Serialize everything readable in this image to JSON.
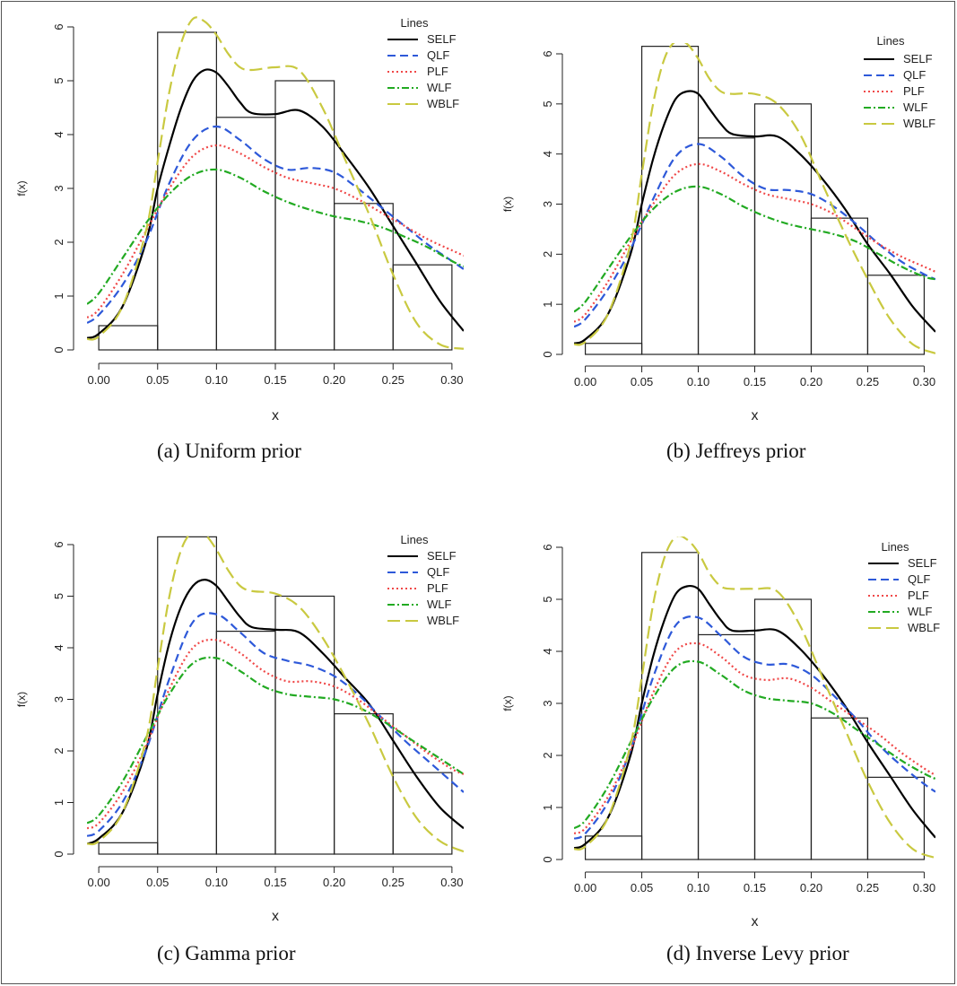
{
  "colors": {
    "SELF": "#000000",
    "QLF": "#2e59d9",
    "PLF": "#f04848",
    "WLF": "#22aa22",
    "WBLF": "#c9c940",
    "frame": "#555555"
  },
  "legend_title": "Lines",
  "series_names": [
    "SELF",
    "QLF",
    "PLF",
    "WLF",
    "WBLF"
  ],
  "chart_data": [
    {
      "type": "line",
      "caption": "(a)  Uniform prior",
      "xlabel": "x",
      "ylabel": "f(x)",
      "xlim": [
        -0.01,
        0.31
      ],
      "ylim": [
        0,
        6
      ],
      "xticks": [
        "0.00",
        "0.05",
        "0.10",
        "0.15",
        "0.20",
        "0.25",
        "0.30"
      ],
      "yticks": [
        "0",
        "1",
        "2",
        "3",
        "4",
        "5",
        "6"
      ],
      "legend_title": "Lines",
      "legend_position": "top-right",
      "histogram": {
        "breaks": [
          0,
          0.05,
          0.1,
          0.15,
          0.2,
          0.25,
          0.3
        ],
        "heights": [
          0.45,
          5.9,
          4.32,
          5.0,
          2.72,
          1.58
        ]
      },
      "series": [
        {
          "name": "SELF",
          "x": [
            -0.01,
            0.0,
            0.02,
            0.04,
            0.05,
            0.06,
            0.07,
            0.08,
            0.09,
            0.1,
            0.11,
            0.12,
            0.13,
            0.15,
            0.17,
            0.19,
            0.21,
            0.23,
            0.25,
            0.27,
            0.29,
            0.31
          ],
          "y": [
            0.22,
            0.3,
            0.8,
            2.0,
            3.0,
            3.8,
            4.5,
            5.0,
            5.2,
            5.15,
            4.9,
            4.6,
            4.4,
            4.38,
            4.45,
            4.15,
            3.6,
            3.0,
            2.3,
            1.6,
            0.9,
            0.35
          ]
        },
        {
          "name": "QLF",
          "x": [
            -0.01,
            0.0,
            0.02,
            0.04,
            0.06,
            0.08,
            0.1,
            0.12,
            0.14,
            0.16,
            0.18,
            0.2,
            0.22,
            0.24,
            0.26,
            0.28,
            0.3,
            0.31
          ],
          "y": [
            0.5,
            0.65,
            1.2,
            2.0,
            3.1,
            3.9,
            4.15,
            3.9,
            3.55,
            3.35,
            3.38,
            3.3,
            3.0,
            2.65,
            2.3,
            1.95,
            1.65,
            1.5
          ]
        },
        {
          "name": "PLF",
          "x": [
            -0.01,
            0.0,
            0.02,
            0.04,
            0.06,
            0.08,
            0.1,
            0.12,
            0.14,
            0.16,
            0.18,
            0.2,
            0.22,
            0.24,
            0.26,
            0.28,
            0.3,
            0.31
          ],
          "y": [
            0.6,
            0.75,
            1.4,
            2.2,
            3.0,
            3.6,
            3.8,
            3.65,
            3.4,
            3.2,
            3.1,
            3.0,
            2.8,
            2.55,
            2.3,
            2.05,
            1.85,
            1.75
          ]
        },
        {
          "name": "WLF",
          "x": [
            -0.01,
            0.0,
            0.02,
            0.04,
            0.06,
            0.08,
            0.1,
            0.12,
            0.14,
            0.16,
            0.18,
            0.2,
            0.22,
            0.24,
            0.26,
            0.28,
            0.3,
            0.31
          ],
          "y": [
            0.85,
            1.05,
            1.7,
            2.35,
            2.9,
            3.25,
            3.35,
            3.2,
            2.95,
            2.75,
            2.6,
            2.48,
            2.4,
            2.28,
            2.1,
            1.9,
            1.65,
            1.55
          ]
        },
        {
          "name": "WBLF",
          "x": [
            -0.01,
            0.0,
            0.02,
            0.04,
            0.05,
            0.06,
            0.07,
            0.08,
            0.09,
            0.1,
            0.11,
            0.12,
            0.13,
            0.15,
            0.17,
            0.19,
            0.21,
            0.23,
            0.25,
            0.27,
            0.29,
            0.31
          ],
          "y": [
            0.2,
            0.25,
            0.8,
            2.2,
            3.5,
            4.8,
            5.7,
            6.15,
            6.1,
            5.85,
            5.5,
            5.25,
            5.2,
            5.25,
            5.2,
            4.5,
            3.5,
            2.5,
            1.4,
            0.5,
            0.1,
            0.02
          ]
        }
      ]
    },
    {
      "type": "line",
      "caption": "(b) Jeffreys prior",
      "xlabel": "x",
      "ylabel": "f(x)",
      "xlim": [
        -0.01,
        0.31
      ],
      "ylim": [
        0,
        6
      ],
      "xticks": [
        "0.00",
        "0.05",
        "0.10",
        "0.15",
        "0.20",
        "0.25",
        "0.30"
      ],
      "yticks": [
        "0",
        "1",
        "2",
        "3",
        "4",
        "5",
        "6"
      ],
      "legend_title": "Lines",
      "legend_position": "top-right",
      "histogram": {
        "breaks": [
          0,
          0.05,
          0.1,
          0.15,
          0.2,
          0.25,
          0.3
        ],
        "heights": [
          0.22,
          6.15,
          4.32,
          5.0,
          2.72,
          1.58
        ]
      },
      "series": [
        {
          "name": "SELF",
          "x": [
            -0.01,
            0.0,
            0.02,
            0.04,
            0.05,
            0.06,
            0.07,
            0.08,
            0.09,
            0.1,
            0.11,
            0.12,
            0.13,
            0.15,
            0.17,
            0.19,
            0.21,
            0.23,
            0.25,
            0.27,
            0.29,
            0.31
          ],
          "y": [
            0.22,
            0.3,
            0.8,
            2.0,
            3.0,
            3.9,
            4.6,
            5.1,
            5.25,
            5.2,
            4.9,
            4.6,
            4.4,
            4.35,
            4.35,
            4.0,
            3.5,
            2.9,
            2.2,
            1.6,
            0.95,
            0.45
          ]
        },
        {
          "name": "QLF",
          "x": [
            -0.01,
            0.0,
            0.02,
            0.04,
            0.06,
            0.08,
            0.1,
            0.12,
            0.14,
            0.16,
            0.18,
            0.2,
            0.22,
            0.24,
            0.26,
            0.28,
            0.3,
            0.31
          ],
          "y": [
            0.55,
            0.7,
            1.3,
            2.1,
            3.1,
            3.95,
            4.2,
            3.95,
            3.55,
            3.3,
            3.28,
            3.2,
            2.95,
            2.6,
            2.2,
            1.85,
            1.6,
            1.5
          ]
        },
        {
          "name": "PLF",
          "x": [
            -0.01,
            0.0,
            0.02,
            0.04,
            0.06,
            0.08,
            0.1,
            0.12,
            0.14,
            0.16,
            0.18,
            0.2,
            0.22,
            0.24,
            0.26,
            0.28,
            0.3,
            0.31
          ],
          "y": [
            0.65,
            0.8,
            1.45,
            2.25,
            3.0,
            3.6,
            3.8,
            3.65,
            3.4,
            3.2,
            3.1,
            3.0,
            2.8,
            2.5,
            2.2,
            1.95,
            1.75,
            1.65
          ]
        },
        {
          "name": "WLF",
          "x": [
            -0.01,
            0.0,
            0.02,
            0.04,
            0.06,
            0.08,
            0.1,
            0.12,
            0.14,
            0.16,
            0.18,
            0.2,
            0.22,
            0.24,
            0.26,
            0.28,
            0.3,
            0.31
          ],
          "y": [
            0.85,
            1.05,
            1.7,
            2.35,
            2.9,
            3.25,
            3.35,
            3.2,
            2.95,
            2.75,
            2.6,
            2.5,
            2.4,
            2.25,
            2.0,
            1.75,
            1.55,
            1.5
          ]
        },
        {
          "name": "WBLF",
          "x": [
            -0.01,
            0.0,
            0.02,
            0.04,
            0.05,
            0.06,
            0.07,
            0.08,
            0.09,
            0.1,
            0.11,
            0.12,
            0.13,
            0.15,
            0.17,
            0.19,
            0.21,
            0.23,
            0.25,
            0.27,
            0.29,
            0.31
          ],
          "y": [
            0.2,
            0.25,
            0.8,
            2.2,
            3.6,
            5.0,
            5.9,
            6.25,
            6.2,
            5.9,
            5.5,
            5.25,
            5.2,
            5.2,
            5.0,
            4.4,
            3.4,
            2.4,
            1.5,
            0.7,
            0.2,
            0.02
          ]
        }
      ]
    },
    {
      "type": "line",
      "caption": "(c)  Gamma prior",
      "xlabel": "x",
      "ylabel": "f(x)",
      "xlim": [
        -0.01,
        0.31
      ],
      "ylim": [
        0,
        6
      ],
      "xticks": [
        "0.00",
        "0.05",
        "0.10",
        "0.15",
        "0.20",
        "0.25",
        "0.30"
      ],
      "yticks": [
        "0",
        "1",
        "2",
        "3",
        "4",
        "5",
        "6"
      ],
      "legend_title": "Lines",
      "legend_position": "top-right",
      "histogram": {
        "breaks": [
          0,
          0.05,
          0.1,
          0.15,
          0.2,
          0.25,
          0.3
        ],
        "heights": [
          0.22,
          6.15,
          4.32,
          5.0,
          2.72,
          1.58
        ]
      },
      "series": [
        {
          "name": "SELF",
          "x": [
            -0.01,
            0.0,
            0.02,
            0.04,
            0.05,
            0.06,
            0.07,
            0.08,
            0.09,
            0.1,
            0.11,
            0.12,
            0.13,
            0.15,
            0.17,
            0.19,
            0.21,
            0.23,
            0.25,
            0.27,
            0.29,
            0.31
          ],
          "y": [
            0.2,
            0.3,
            0.8,
            2.0,
            3.1,
            4.1,
            4.8,
            5.2,
            5.32,
            5.2,
            4.9,
            4.6,
            4.4,
            4.35,
            4.3,
            3.9,
            3.4,
            2.9,
            2.2,
            1.5,
            0.9,
            0.5
          ]
        },
        {
          "name": "QLF",
          "x": [
            -0.01,
            0.0,
            0.02,
            0.04,
            0.06,
            0.08,
            0.1,
            0.12,
            0.14,
            0.16,
            0.18,
            0.2,
            0.22,
            0.24,
            0.26,
            0.28,
            0.3,
            0.31
          ],
          "y": [
            0.35,
            0.45,
            1.0,
            2.0,
            3.4,
            4.5,
            4.65,
            4.3,
            3.9,
            3.75,
            3.65,
            3.45,
            3.1,
            2.65,
            2.2,
            1.8,
            1.4,
            1.2
          ]
        },
        {
          "name": "PLF",
          "x": [
            -0.01,
            0.0,
            0.02,
            0.04,
            0.06,
            0.08,
            0.1,
            0.12,
            0.14,
            0.16,
            0.18,
            0.2,
            0.22,
            0.24,
            0.26,
            0.28,
            0.3,
            0.31
          ],
          "y": [
            0.5,
            0.6,
            1.2,
            2.1,
            3.2,
            4.0,
            4.15,
            3.9,
            3.55,
            3.35,
            3.35,
            3.25,
            3.0,
            2.65,
            2.3,
            1.95,
            1.65,
            1.55
          ]
        },
        {
          "name": "WLF",
          "x": [
            -0.01,
            0.0,
            0.02,
            0.04,
            0.06,
            0.08,
            0.1,
            0.12,
            0.14,
            0.16,
            0.18,
            0.2,
            0.22,
            0.24,
            0.26,
            0.28,
            0.3,
            0.31
          ],
          "y": [
            0.6,
            0.75,
            1.4,
            2.25,
            3.1,
            3.7,
            3.8,
            3.55,
            3.25,
            3.1,
            3.05,
            3.0,
            2.85,
            2.6,
            2.3,
            2.0,
            1.7,
            1.55
          ]
        },
        {
          "name": "WBLF",
          "x": [
            -0.01,
            0.0,
            0.02,
            0.04,
            0.05,
            0.06,
            0.07,
            0.08,
            0.09,
            0.1,
            0.11,
            0.12,
            0.13,
            0.15,
            0.17,
            0.19,
            0.21,
            0.23,
            0.25,
            0.27,
            0.29,
            0.31
          ],
          "y": [
            0.2,
            0.25,
            0.8,
            2.2,
            3.6,
            5.0,
            5.9,
            6.25,
            6.2,
            5.9,
            5.5,
            5.2,
            5.1,
            5.05,
            4.8,
            4.2,
            3.4,
            2.5,
            1.5,
            0.7,
            0.25,
            0.05
          ]
        }
      ]
    },
    {
      "type": "line",
      "caption": "(d) Inverse Levy prior",
      "xlabel": "x",
      "ylabel": "f(x)",
      "xlim": [
        -0.01,
        0.31
      ],
      "ylim": [
        0,
        6
      ],
      "xticks": [
        "0.00",
        "0.05",
        "0.10",
        "0.15",
        "0.20",
        "0.25",
        "0.30"
      ],
      "yticks": [
        "0",
        "1",
        "2",
        "3",
        "4",
        "5",
        "6"
      ],
      "legend_title": "Lines",
      "legend_position": "top-right",
      "histogram": {
        "breaks": [
          0,
          0.05,
          0.1,
          0.15,
          0.2,
          0.25,
          0.3
        ],
        "heights": [
          0.45,
          5.9,
          4.32,
          5.0,
          2.72,
          1.58
        ]
      },
      "series": [
        {
          "name": "SELF",
          "x": [
            -0.01,
            0.0,
            0.02,
            0.04,
            0.05,
            0.06,
            0.07,
            0.08,
            0.09,
            0.1,
            0.11,
            0.12,
            0.13,
            0.15,
            0.17,
            0.19,
            0.21,
            0.23,
            0.25,
            0.27,
            0.29,
            0.31
          ],
          "y": [
            0.22,
            0.3,
            0.8,
            2.0,
            3.0,
            3.9,
            4.6,
            5.1,
            5.25,
            5.2,
            4.9,
            4.6,
            4.4,
            4.4,
            4.4,
            4.05,
            3.55,
            2.95,
            2.25,
            1.6,
            0.95,
            0.42
          ]
        },
        {
          "name": "QLF",
          "x": [
            -0.01,
            0.0,
            0.02,
            0.04,
            0.06,
            0.08,
            0.1,
            0.12,
            0.14,
            0.16,
            0.18,
            0.2,
            0.22,
            0.24,
            0.26,
            0.28,
            0.3,
            0.31
          ],
          "y": [
            0.4,
            0.5,
            1.1,
            2.1,
            3.5,
            4.5,
            4.65,
            4.3,
            3.9,
            3.75,
            3.75,
            3.55,
            3.15,
            2.7,
            2.2,
            1.8,
            1.45,
            1.3
          ]
        },
        {
          "name": "PLF",
          "x": [
            -0.01,
            0.0,
            0.02,
            0.04,
            0.06,
            0.08,
            0.1,
            0.12,
            0.14,
            0.16,
            0.18,
            0.2,
            0.22,
            0.24,
            0.26,
            0.28,
            0.3,
            0.31
          ],
          "y": [
            0.5,
            0.6,
            1.2,
            2.1,
            3.2,
            4.0,
            4.15,
            3.9,
            3.55,
            3.45,
            3.48,
            3.3,
            3.0,
            2.7,
            2.4,
            2.05,
            1.75,
            1.62
          ]
        },
        {
          "name": "WLF",
          "x": [
            -0.01,
            0.0,
            0.02,
            0.04,
            0.06,
            0.08,
            0.1,
            0.12,
            0.14,
            0.16,
            0.18,
            0.2,
            0.22,
            0.24,
            0.26,
            0.28,
            0.3,
            0.31
          ],
          "y": [
            0.6,
            0.75,
            1.4,
            2.25,
            3.1,
            3.7,
            3.8,
            3.55,
            3.25,
            3.1,
            3.05,
            3.0,
            2.8,
            2.5,
            2.2,
            1.9,
            1.65,
            1.55
          ]
        },
        {
          "name": "WBLF",
          "x": [
            -0.01,
            0.0,
            0.02,
            0.04,
            0.05,
            0.06,
            0.07,
            0.08,
            0.09,
            0.1,
            0.11,
            0.12,
            0.13,
            0.15,
            0.17,
            0.19,
            0.21,
            0.23,
            0.25,
            0.27,
            0.29,
            0.31
          ],
          "y": [
            0.2,
            0.25,
            0.8,
            2.2,
            3.5,
            4.9,
            5.8,
            6.2,
            6.15,
            5.9,
            5.5,
            5.25,
            5.2,
            5.2,
            5.15,
            4.5,
            3.5,
            2.5,
            1.5,
            0.7,
            0.2,
            0.03
          ]
        }
      ]
    }
  ]
}
